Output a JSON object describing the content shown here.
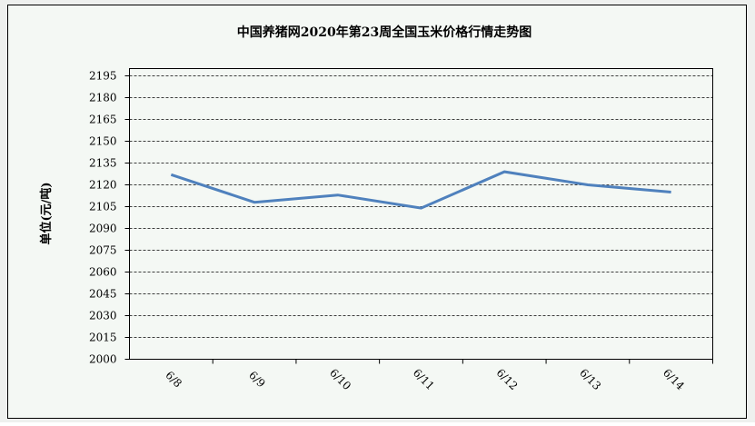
{
  "chart_data": {
    "type": "line",
    "title": "中国养猪网2020年第23周全国玉米价格行情走势图",
    "y_label": "单位(元/吨)",
    "categories": [
      "6/8",
      "6/9",
      "6/10",
      "6/11",
      "6/12",
      "6/13",
      "6/14"
    ],
    "series": [
      {
        "name": "玉米价格",
        "color": "#4f81bd",
        "values": [
          2127,
          2108,
          2113,
          2104,
          2129,
          2120,
          2115
        ]
      }
    ],
    "ylim": [
      2000,
      2200
    ],
    "yticks": [
      2000,
      2015,
      2030,
      2045,
      2060,
      2075,
      2090,
      2105,
      2120,
      2135,
      2150,
      2165,
      2180,
      2195
    ],
    "grid": true
  }
}
